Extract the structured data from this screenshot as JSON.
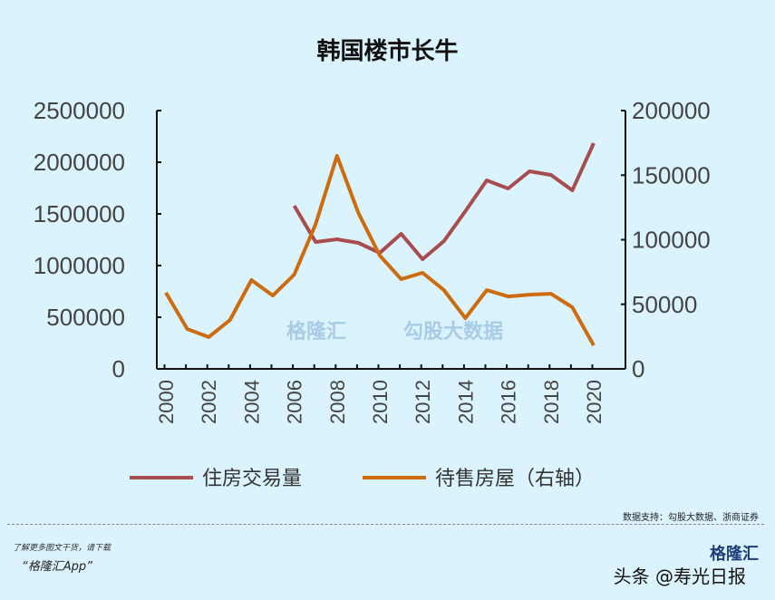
{
  "chart_data": {
    "type": "line",
    "title": "韩国楼市长牛",
    "x": [
      2000,
      2001,
      2002,
      2003,
      2004,
      2005,
      2006,
      2007,
      2008,
      2009,
      2010,
      2011,
      2012,
      2013,
      2014,
      2015,
      2016,
      2017,
      2018,
      2019,
      2020
    ],
    "x_ticks": [
      "2000",
      "2002",
      "2004",
      "2006",
      "2008",
      "2010",
      "2012",
      "2014",
      "2016",
      "2018",
      "2020"
    ],
    "left_axis": {
      "ylim": [
        0,
        2500000
      ],
      "ticks": [
        "0",
        "500000",
        "1000000",
        "1500000",
        "2000000",
        "2500000"
      ]
    },
    "right_axis": {
      "ylim": [
        0,
        200000
      ],
      "ticks": [
        "0",
        "50000",
        "100000",
        "150000",
        "200000"
      ]
    },
    "series": [
      {
        "name": "住房交易量",
        "axis": "left",
        "color": "#a94c4e",
        "values": [
          null,
          null,
          null,
          null,
          null,
          null,
          1579000,
          1228000,
          1254000,
          1219000,
          1123000,
          1307000,
          1061000,
          1237000,
          1526000,
          1825000,
          1746000,
          1912000,
          1877000,
          1728000,
          2184000
        ]
      },
      {
        "name": "待售房屋（右轴）",
        "axis": "right",
        "color": "#cc6c0e",
        "values": [
          59000,
          30900,
          24600,
          37900,
          68800,
          56800,
          73000,
          112000,
          165000,
          120700,
          87700,
          69500,
          74400,
          61000,
          39300,
          61000,
          56100,
          57500,
          58200,
          47700,
          18200
        ]
      }
    ],
    "legend": "bottom",
    "grid": false
  },
  "watermark": {
    "left": "格隆汇",
    "left_url": "www.gelonghui.com",
    "right": "勾股大数据",
    "right_url": "www.gogudata.com"
  },
  "footer": {
    "source": "数据支持：勾股大数据、浙商证券",
    "promo_line1": "了解更多图文干货，请下载",
    "promo_line2": "“格隆汇App”",
    "brand": "格隆汇",
    "toutiao": "头条 @寿光日报"
  }
}
